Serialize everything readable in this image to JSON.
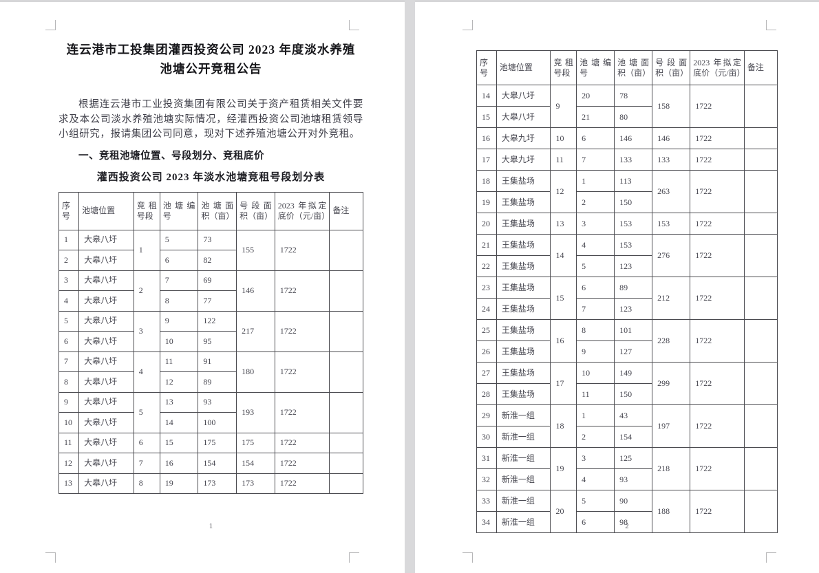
{
  "page1": {
    "title_line1": "连云港市工投集团灌西投资公司 2023 年度淡水养殖",
    "title_line2": "池塘公开竞租公告",
    "paragraph": "根据连云港市工业投资集团有限公司关于资产租赁相关文件要求及本公司淡水养殖池塘实际情况，经灌西投资公司池塘租赁领导小组研究，报请集团公司同意，现对下述养殖池塘公开对外竞租。",
    "section_heading": "一、竞租池塘位置、号段划分、竞租底价",
    "table_title": "灌西投资公司 2023 年淡水池塘竞租号段划分表",
    "page_number": "1"
  },
  "page2": {
    "page_number": "2"
  },
  "table": {
    "headers": [
      "序号",
      "池塘位置",
      "竞租号段",
      "池塘编号",
      "池塘面积（亩）",
      "号段面积（亩）",
      "2023 年拟定底价（元/亩）",
      "备注"
    ],
    "page1_groups": [
      {
        "segment": "1",
        "segment_area": "155",
        "base_price": "1722",
        "note": "",
        "rows": [
          {
            "seq": "1",
            "location": "大皋八圩",
            "pond_no": "5",
            "pond_area": "73"
          },
          {
            "seq": "2",
            "location": "大皋八圩",
            "pond_no": "6",
            "pond_area": "82"
          }
        ]
      },
      {
        "segment": "2",
        "segment_area": "146",
        "base_price": "1722",
        "note": "",
        "rows": [
          {
            "seq": "3",
            "location": "大皋八圩",
            "pond_no": "7",
            "pond_area": "69"
          },
          {
            "seq": "4",
            "location": "大皋八圩",
            "pond_no": "8",
            "pond_area": "77"
          }
        ]
      },
      {
        "segment": "3",
        "segment_area": "217",
        "base_price": "1722",
        "note": "",
        "rows": [
          {
            "seq": "5",
            "location": "大皋八圩",
            "pond_no": "9",
            "pond_area": "122"
          },
          {
            "seq": "6",
            "location": "大皋八圩",
            "pond_no": "10",
            "pond_area": "95"
          }
        ]
      },
      {
        "segment": "4",
        "segment_area": "180",
        "base_price": "1722",
        "note": "",
        "rows": [
          {
            "seq": "7",
            "location": "大皋八圩",
            "pond_no": "11",
            "pond_area": "91"
          },
          {
            "seq": "8",
            "location": "大皋八圩",
            "pond_no": "12",
            "pond_area": "89"
          }
        ]
      },
      {
        "segment": "5",
        "segment_area": "193",
        "base_price": "1722",
        "note": "",
        "rows": [
          {
            "seq": "9",
            "location": "大皋八圩",
            "pond_no": "13",
            "pond_area": "93"
          },
          {
            "seq": "10",
            "location": "大皋八圩",
            "pond_no": "14",
            "pond_area": "100"
          }
        ]
      },
      {
        "segment": "6",
        "segment_area": "175",
        "base_price": "1722",
        "note": "",
        "rows": [
          {
            "seq": "11",
            "location": "大皋八圩",
            "pond_no": "15",
            "pond_area": "175"
          }
        ]
      },
      {
        "segment": "7",
        "segment_area": "154",
        "base_price": "1722",
        "note": "",
        "rows": [
          {
            "seq": "12",
            "location": "大皋八圩",
            "pond_no": "16",
            "pond_area": "154"
          }
        ]
      },
      {
        "segment": "8",
        "segment_area": "173",
        "base_price": "1722",
        "note": "",
        "rows": [
          {
            "seq": "13",
            "location": "大皋八圩",
            "pond_no": "19",
            "pond_area": "173"
          }
        ]
      }
    ],
    "page2_groups": [
      {
        "segment": "9",
        "segment_area": "158",
        "base_price": "1722",
        "note": "",
        "rows": [
          {
            "seq": "14",
            "location": "大皋八圩",
            "pond_no": "20",
            "pond_area": "78"
          },
          {
            "seq": "15",
            "location": "大皋八圩",
            "pond_no": "21",
            "pond_area": "80"
          }
        ]
      },
      {
        "segment": "10",
        "segment_area": "146",
        "base_price": "1722",
        "note": "",
        "rows": [
          {
            "seq": "16",
            "location": "大皋九圩",
            "pond_no": "6",
            "pond_area": "146"
          }
        ]
      },
      {
        "segment": "11",
        "segment_area": "133",
        "base_price": "1722",
        "note": "",
        "rows": [
          {
            "seq": "17",
            "location": "大皋九圩",
            "pond_no": "7",
            "pond_area": "133"
          }
        ]
      },
      {
        "segment": "12",
        "segment_area": "263",
        "base_price": "1722",
        "note": "",
        "rows": [
          {
            "seq": "18",
            "location": "王集盐场",
            "pond_no": "1",
            "pond_area": "113"
          },
          {
            "seq": "19",
            "location": "王集盐场",
            "pond_no": "2",
            "pond_area": "150"
          }
        ]
      },
      {
        "segment": "13",
        "segment_area": "153",
        "base_price": "1722",
        "note": "",
        "rows": [
          {
            "seq": "20",
            "location": "王集盐场",
            "pond_no": "3",
            "pond_area": "153"
          }
        ]
      },
      {
        "segment": "14",
        "segment_area": "276",
        "base_price": "1722",
        "note": "",
        "rows": [
          {
            "seq": "21",
            "location": "王集盐场",
            "pond_no": "4",
            "pond_area": "153"
          },
          {
            "seq": "22",
            "location": "王集盐场",
            "pond_no": "5",
            "pond_area": "123"
          }
        ]
      },
      {
        "segment": "15",
        "segment_area": "212",
        "base_price": "1722",
        "note": "",
        "rows": [
          {
            "seq": "23",
            "location": "王集盐场",
            "pond_no": "6",
            "pond_area": "89"
          },
          {
            "seq": "24",
            "location": "王集盐场",
            "pond_no": "7",
            "pond_area": "123"
          }
        ]
      },
      {
        "segment": "16",
        "segment_area": "228",
        "base_price": "1722",
        "note": "",
        "rows": [
          {
            "seq": "25",
            "location": "王集盐场",
            "pond_no": "8",
            "pond_area": "101"
          },
          {
            "seq": "26",
            "location": "王集盐场",
            "pond_no": "9",
            "pond_area": "127"
          }
        ]
      },
      {
        "segment": "17",
        "segment_area": "299",
        "base_price": "1722",
        "note": "",
        "rows": [
          {
            "seq": "27",
            "location": "王集盐场",
            "pond_no": "10",
            "pond_area": "149"
          },
          {
            "seq": "28",
            "location": "王集盐场",
            "pond_no": "11",
            "pond_area": "150"
          }
        ]
      },
      {
        "segment": "18",
        "segment_area": "197",
        "base_price": "1722",
        "note": "",
        "rows": [
          {
            "seq": "29",
            "location": "新淮一组",
            "pond_no": "1",
            "pond_area": "43"
          },
          {
            "seq": "30",
            "location": "新淮一组",
            "pond_no": "2",
            "pond_area": "154"
          }
        ]
      },
      {
        "segment": "19",
        "segment_area": "218",
        "base_price": "1722",
        "note": "",
        "rows": [
          {
            "seq": "31",
            "location": "新淮一组",
            "pond_no": "3",
            "pond_area": "125"
          },
          {
            "seq": "32",
            "location": "新淮一组",
            "pond_no": "4",
            "pond_area": "93"
          }
        ]
      },
      {
        "segment": "20",
        "segment_area": "188",
        "base_price": "1722",
        "note": "",
        "rows": [
          {
            "seq": "33",
            "location": "新淮一组",
            "pond_no": "5",
            "pond_area": "90"
          },
          {
            "seq": "34",
            "location": "新淮一组",
            "pond_no": "6",
            "pond_area": "98"
          }
        ]
      }
    ]
  }
}
